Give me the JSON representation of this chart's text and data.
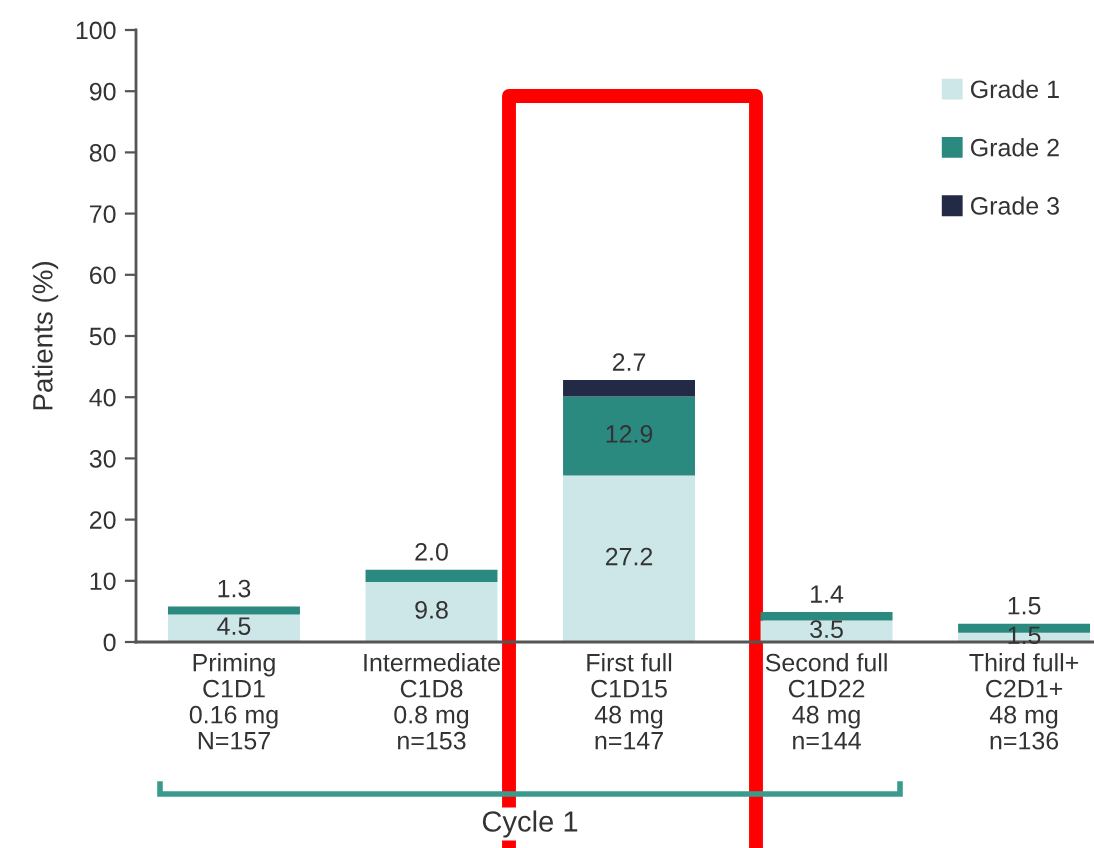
{
  "chart_data": {
    "type": "bar",
    "stacked": true,
    "ylabel": "Patients (%)",
    "categories": [
      "Priming\nC1D1\n0.16 mg\nN=157",
      "Intermediate\nC1D8\n0.8 mg\nn=153",
      "First full\nC1D15\n48 mg\nn=147",
      "Second full\nC1D22\n48 mg\nn=144",
      "Third full+\nC2D1+\n48 mg\nn=136"
    ],
    "series": [
      {
        "name": "Grade 1",
        "color": "#cde6e7",
        "values": [
          4.5,
          9.8,
          27.2,
          3.5,
          1.5
        ],
        "value_labels": [
          "4.5",
          "9.8",
          "27.2",
          "3.5",
          "1.5"
        ]
      },
      {
        "name": "Grade 2",
        "color": "#2b8a80",
        "values": [
          1.3,
          2.0,
          12.9,
          1.4,
          1.5
        ],
        "value_labels": [
          "1.3",
          "2.0",
          "12.9",
          "1.4",
          "1.5"
        ]
      },
      {
        "name": "Grade 3",
        "color": "#222a46",
        "values": [
          null,
          null,
          2.7,
          null,
          null
        ],
        "value_labels": [
          null,
          null,
          "2.7",
          null,
          null
        ]
      }
    ],
    "ylim": [
      0,
      100
    ],
    "yticks": [
      0,
      10,
      20,
      30,
      40,
      50,
      60,
      70,
      80,
      90,
      100
    ],
    "legend": "top right",
    "annotations": [
      "Cycle 1"
    ]
  }
}
